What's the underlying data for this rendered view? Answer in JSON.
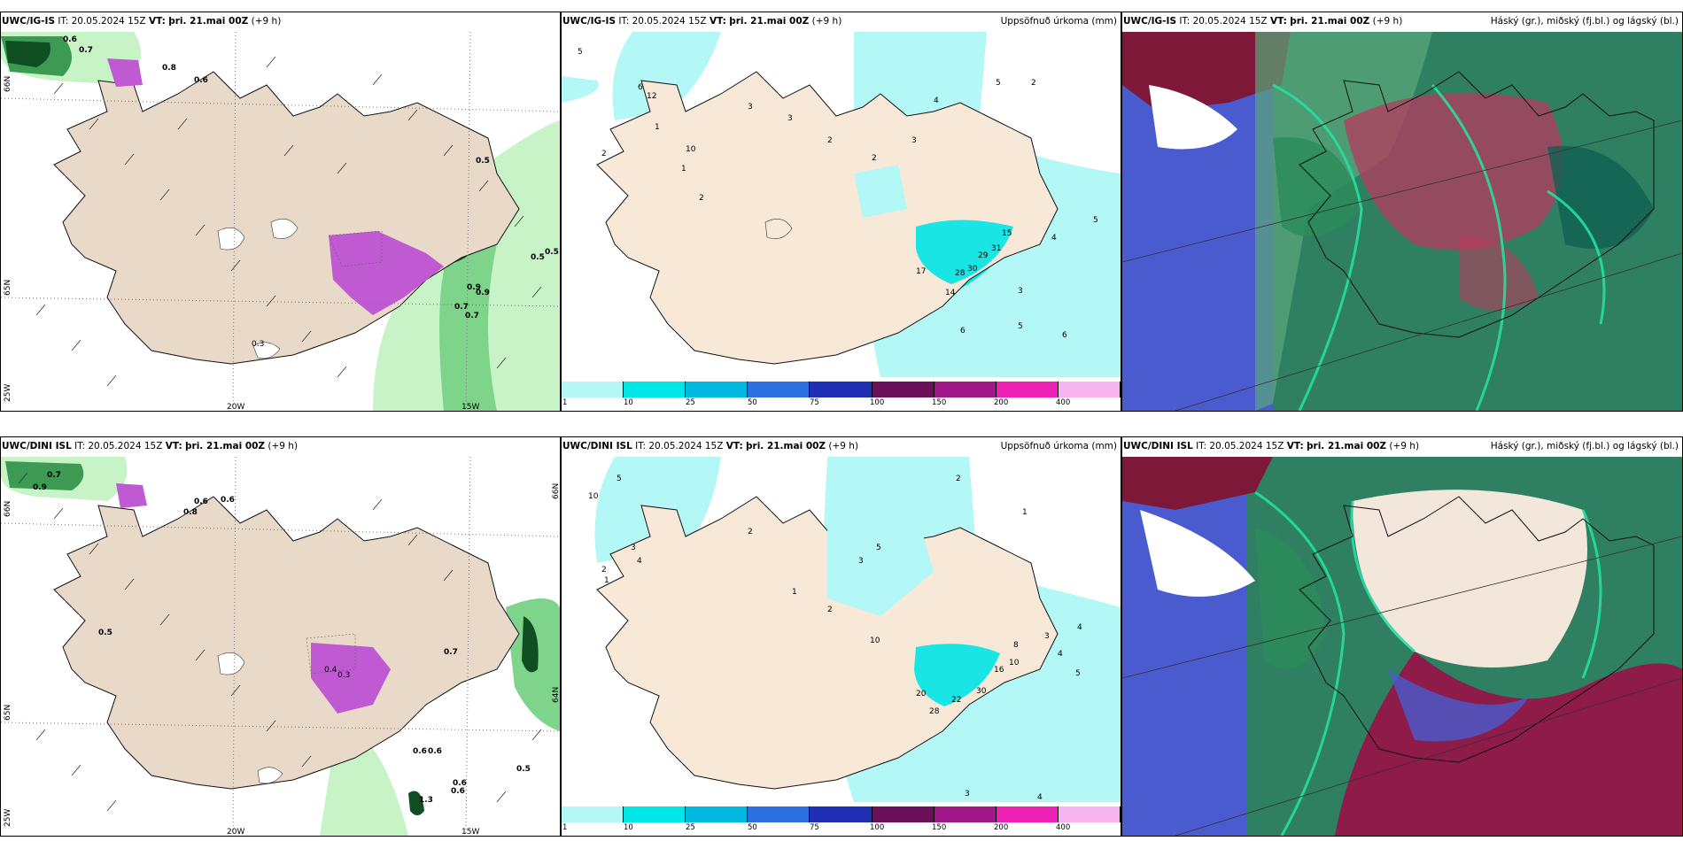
{
  "rows": [
    {
      "model": "UWC/IG-IS",
      "it_label": "IT:",
      "it": "20.05.2024 15Z",
      "vt_label": "VT:",
      "vt": "þri. 21.mai 00Z",
      "lead": "(+9 h)",
      "precip_title": "Uppsöfnuð úrkoma (mm)",
      "cloud_title": "Háský (gr.), miðský (fj.bl.) og lágský (bl.)",
      "wind_values": [
        "0.6",
        "0.7",
        "0.8",
        "0.6",
        "0.5",
        "0.5",
        "0.5",
        "0.9",
        "0.9",
        "0.7",
        "0.7",
        "0.3"
      ],
      "precip_values": [
        "5",
        "6",
        "12",
        "2",
        "3",
        "3",
        "2",
        "10",
        "1",
        "2",
        "3",
        "4",
        "5",
        "17",
        "14",
        "28",
        "30",
        "15",
        "29",
        "31",
        "6",
        "5",
        "6",
        "5",
        "4",
        "3",
        "2",
        "1",
        "2"
      ]
    },
    {
      "model": "UWC/DINI ISL",
      "it_label": "IT:",
      "it": "20.05.2024 15Z",
      "vt_label": "VT:",
      "vt": "þri. 21.mai 00Z",
      "lead": "(+9 h)",
      "precip_title": "Uppsöfnuð úrkoma (mm)",
      "cloud_title": "Háský (gr.), miðský (fj.bl.) og lágský (bl.)",
      "wind_values": [
        "0.7",
        "0.9",
        "0.6",
        "0.6",
        "0.8",
        "0.5",
        "0.7",
        "0.4",
        "0.3",
        "0.6",
        "0.6",
        "0.6",
        "0.5",
        "1.3",
        "0.6"
      ],
      "precip_values": [
        "10",
        "5",
        "2",
        "1",
        "3",
        "4",
        "2",
        "1",
        "2",
        "3",
        "5",
        "10",
        "20",
        "28",
        "22",
        "30",
        "16",
        "8",
        "10",
        "3",
        "4",
        "5",
        "1",
        "2",
        "4",
        "3",
        "4"
      ]
    }
  ],
  "axes": {
    "lat_66": "66N",
    "lat_65": "65N",
    "lat_64": "64N",
    "lon_20": "20W",
    "lon_15": "15W",
    "lon_25": "25W"
  },
  "colorbar": {
    "ticks": [
      "1",
      "10",
      "25",
      "50",
      "75",
      "100",
      "150",
      "200",
      "400"
    ],
    "colors": [
      "#b4f7f7",
      "#00e6e6",
      "#00b8e0",
      "#2b6fe0",
      "#1f2fb5",
      "#6b0f5a",
      "#a01889",
      "#ee20b5",
      "#f5b4ee"
    ]
  },
  "colors": {
    "land": "#f1e2d4",
    "land_wind": "#e9d9c8",
    "precip_light": "#b4f7f7",
    "precip_mid": "#00e6e6",
    "green_light": "#c7f3c7",
    "green_dark": "#0f4d23",
    "magenta": "#c05ad3",
    "cloud_high": "#4a5bd0",
    "cloud_mid": "#2f7f63",
    "cloud_low": "#b83a5e"
  }
}
